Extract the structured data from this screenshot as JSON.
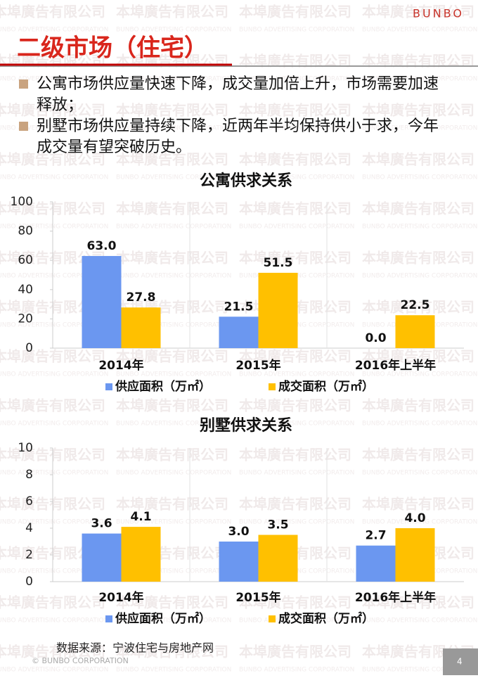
{
  "header": {
    "title": "二级市场（住宅）",
    "logo": "BUNBO"
  },
  "bullets": [
    "公寓市场供应量快速下降，成交量加倍上升，市场需要加速释放；",
    "别墅市场供应量持续下降，近两年半均保持供小于求，今年成交量有望突破历史。"
  ],
  "watermark": "本埠廣告有限公司",
  "watermark_en": "BUNBO ADVERTISING CORPORATION",
  "chart_data": [
    {
      "type": "bar",
      "title": "公寓供求关系",
      "categories": [
        "2014年",
        "2015年",
        "2016年上半年"
      ],
      "series": [
        {
          "name": "供应面积（万㎡）",
          "color": "#6b97f0",
          "values": [
            63,
            21.5,
            0
          ],
          "value_labels": [
            "63.0",
            "21.5",
            "0.0"
          ]
        },
        {
          "name": "成交面积（万㎡）",
          "color": "#ffc000",
          "values": [
            27.8,
            51.5,
            22.5
          ],
          "value_labels": [
            "27.8",
            "51.5",
            "22.5"
          ]
        }
      ],
      "ylim": [
        0,
        100
      ],
      "yticks": [
        0,
        20,
        40,
        60,
        80,
        100
      ],
      "grid": false,
      "legend": "bottom"
    },
    {
      "type": "bar",
      "title": "别墅供求关系",
      "categories": [
        "2014年",
        "2015年",
        "2016年上半年"
      ],
      "series": [
        {
          "name": "供应面积（万㎡）",
          "color": "#6b97f0",
          "values": [
            3.6,
            3.0,
            2.7
          ],
          "value_labels": [
            "3.6",
            "3.0",
            "2.7"
          ]
        },
        {
          "name": "成交面积（万㎡）",
          "color": "#ffc000",
          "values": [
            4.1,
            3.5,
            4.0
          ],
          "value_labels": [
            "4.1",
            "3.5",
            "4.0"
          ]
        }
      ],
      "ylim": [
        0,
        10
      ],
      "yticks": [
        0,
        2,
        4,
        6,
        8,
        10
      ],
      "grid": false,
      "legend": "bottom"
    }
  ],
  "source": "数据来源：宁波住宅与房地产网",
  "footer": "© BUNBO CORPORATION",
  "page_number": "4"
}
